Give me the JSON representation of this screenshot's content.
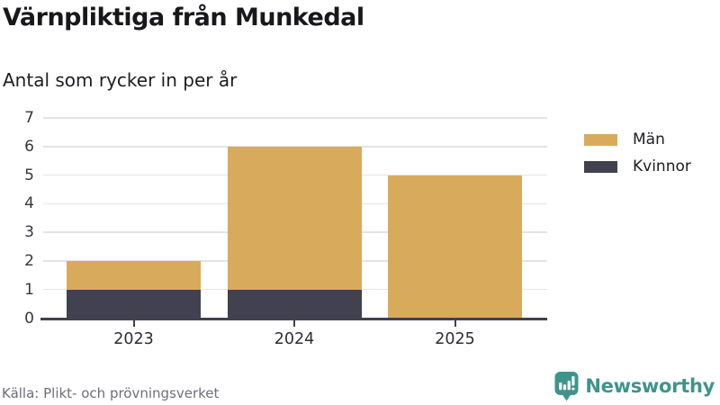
{
  "header": {
    "title": "Värnpliktiga från Munkedal",
    "subtitle": "Antal som rycker in per år"
  },
  "chart_data": {
    "type": "bar",
    "stacked": true,
    "categories": [
      "2023",
      "2024",
      "2025"
    ],
    "series": [
      {
        "name": "Män",
        "color": "#D8AB5C",
        "values": [
          1,
          5,
          5
        ]
      },
      {
        "name": "Kvinnor",
        "color": "#414150",
        "values": [
          1,
          1,
          0
        ]
      }
    ],
    "stack_totals": [
      2,
      6,
      5
    ],
    "title": "Värnpliktiga från Munkedal",
    "subtitle": "Antal som rycker in per år",
    "xlabel": "",
    "ylabel": "",
    "ylim": [
      0,
      7
    ],
    "yticks": [
      0,
      1,
      2,
      3,
      4,
      5,
      6,
      7
    ],
    "grid": "horizontal",
    "gridline_color": "#e4e4e6",
    "axis_color": "#414150",
    "legend_position": "right"
  },
  "footer": {
    "source": "Källa: Plikt- och prövningsverket",
    "brand": "Newsworthy",
    "brand_color": "#3E948B"
  }
}
